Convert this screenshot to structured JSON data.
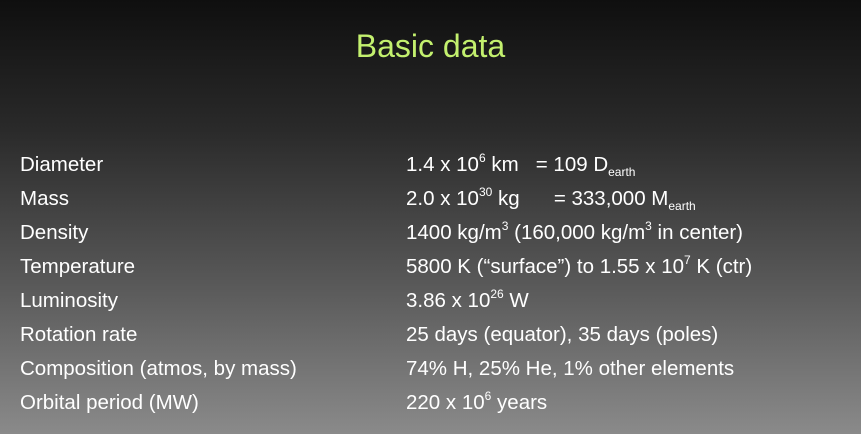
{
  "slide": {
    "title": "Basic data",
    "rows": [
      {
        "label": "Diameter",
        "parts": [
          {
            "t": "1.4 x 10"
          },
          {
            "sup": "6"
          },
          {
            "t": " km   = 109 D"
          },
          {
            "sub": "earth"
          }
        ]
      },
      {
        "label": "Mass",
        "parts": [
          {
            "t": "2.0 x 10"
          },
          {
            "sup": "30"
          },
          {
            "t": " kg      = 333,000 M"
          },
          {
            "sub": "earth"
          }
        ]
      },
      {
        "label": "Density",
        "parts": [
          {
            "t": "1400 kg/m"
          },
          {
            "sup": "3"
          },
          {
            "t": " (160,000 kg/m"
          },
          {
            "sup": "3"
          },
          {
            "t": " in center)"
          }
        ]
      },
      {
        "label": "Temperature",
        "parts": [
          {
            "t": "5800 K (“surface”) to 1.55 x 10"
          },
          {
            "sup": "7"
          },
          {
            "t": " K (ctr)"
          }
        ]
      },
      {
        "label": "Luminosity",
        "parts": [
          {
            "t": "3.86 x 10"
          },
          {
            "sup": "26"
          },
          {
            "t": " W"
          }
        ]
      },
      {
        "label": "Rotation rate",
        "parts": [
          {
            "t": "25 days (equator), 35 days (poles)"
          }
        ]
      },
      {
        "label": "Composition (atmos, by mass)",
        "parts": [
          {
            "t": "74% H, 25% He, 1% other elements"
          }
        ]
      },
      {
        "label": "Orbital period (MW)",
        "parts": [
          {
            "t": "220 x 10"
          },
          {
            "sup": "6"
          },
          {
            "t": " years"
          }
        ]
      }
    ]
  }
}
